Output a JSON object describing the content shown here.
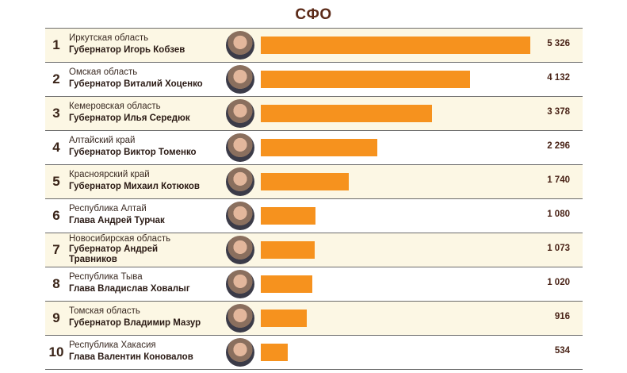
{
  "chart_data": {
    "type": "bar",
    "orientation": "horizontal",
    "title": "СФО",
    "bar_color": "#f6921e",
    "row_colors": [
      "#fcf7e4",
      "#ffffff"
    ],
    "xlim": [
      0,
      5326
    ],
    "rows": [
      {
        "rank": "1",
        "region": "Иркутская область",
        "name": "Губернатор Игорь Кобзев",
        "value": 5326,
        "label": "5 326"
      },
      {
        "rank": "2",
        "region": "Омская область",
        "name": "Губернатор Виталий Хоценко",
        "value": 4132,
        "label": "4 132"
      },
      {
        "rank": "3",
        "region": "Кемеровская область",
        "name": "Губернатор Илья Середюк",
        "value": 3378,
        "label": "3 378"
      },
      {
        "rank": "4",
        "region": "Алтайский край",
        "name": "Губернатор Виктор Томенко",
        "value": 2296,
        "label": "2 296"
      },
      {
        "rank": "5",
        "region": "Красноярский край",
        "name": "Губернатор Михаил Котюков",
        "value": 1740,
        "label": "1 740"
      },
      {
        "rank": "6",
        "region": "Республика Алтай",
        "name": "Глава Андрей Турчак",
        "value": 1080,
        "label": "1 080"
      },
      {
        "rank": "7",
        "region": "Новосибирская область",
        "name": "Губернатор Андрей Травников",
        "value": 1073,
        "label": "1 073"
      },
      {
        "rank": "8",
        "region": "Республика Тыва",
        "name": "Глава Владислав Ховалыг",
        "value": 1020,
        "label": "1 020"
      },
      {
        "rank": "9",
        "region": "Томская область",
        "name": "Губернатор Владимир Мазур",
        "value": 916,
        "label": "916"
      },
      {
        "rank": "10",
        "region": "Республика Хакасия",
        "name": "Глава Валентин Коновалов",
        "value": 534,
        "label": "534"
      }
    ]
  }
}
